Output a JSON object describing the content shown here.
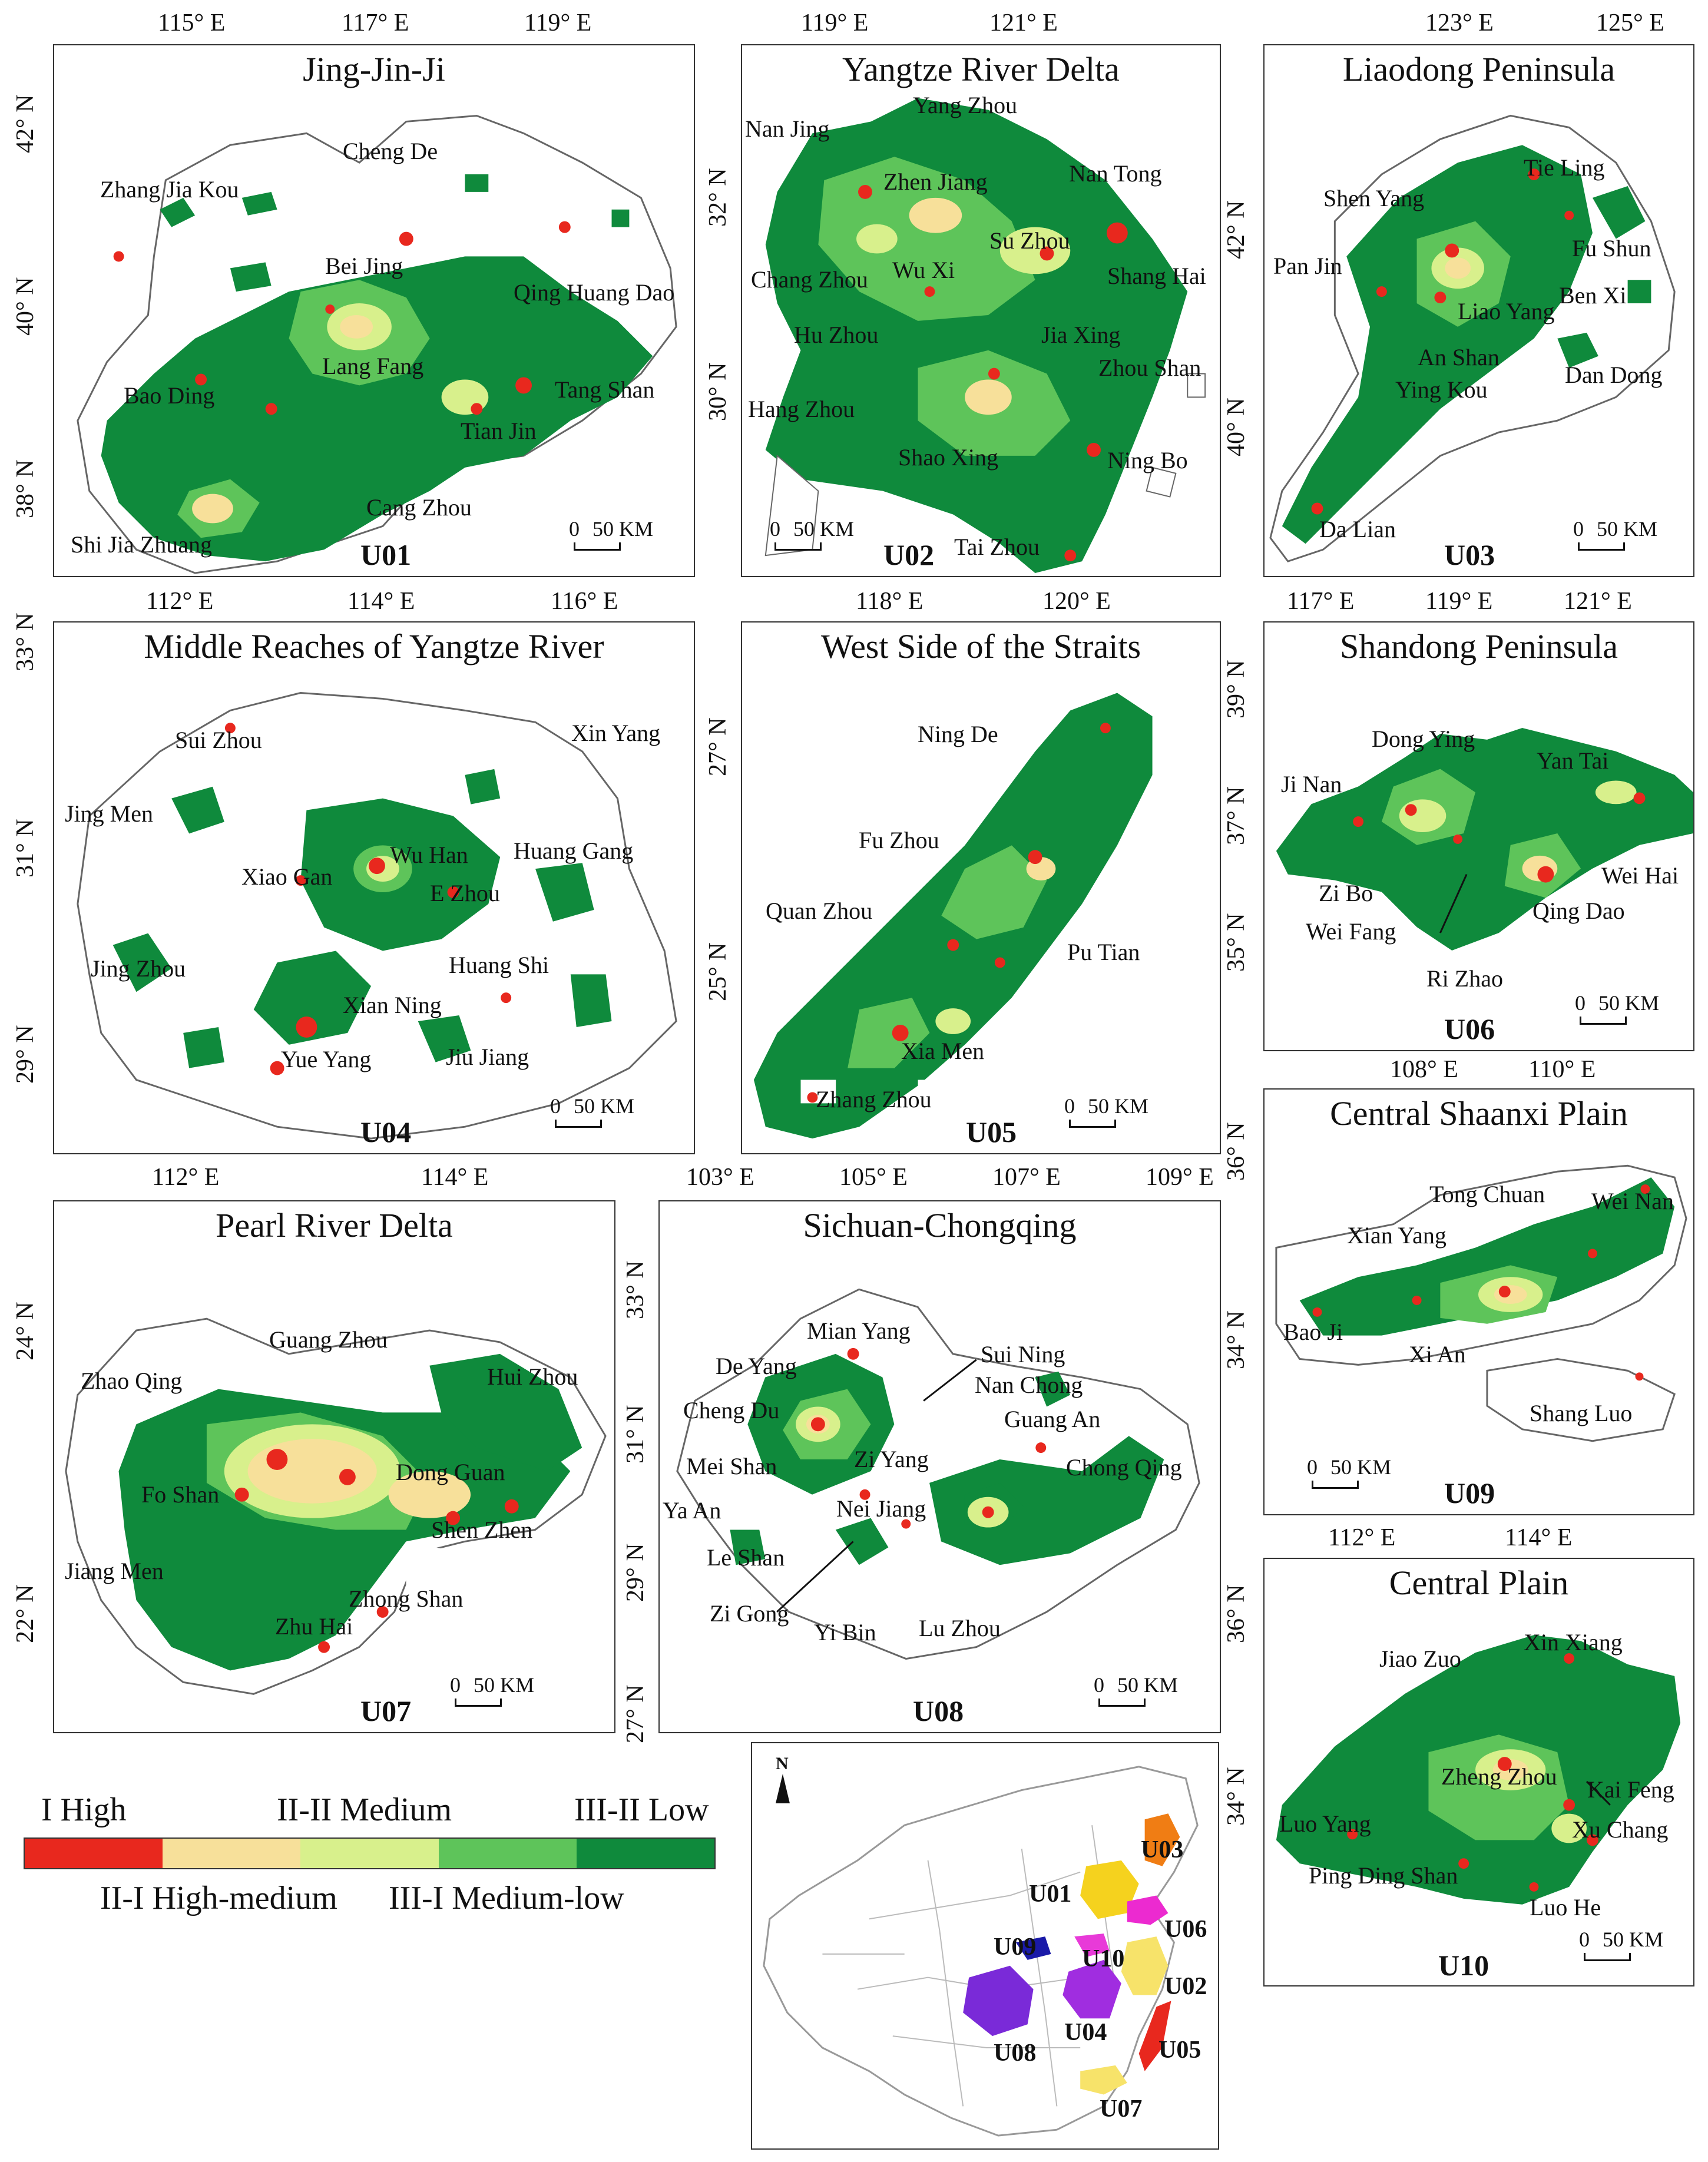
{
  "colors": {
    "high": "#e8281e",
    "high_medium": "#f7e09a",
    "medium": "#d8f08c",
    "medium_low": "#5ec45a",
    "low": "#0f8a3c"
  },
  "panels": {
    "u01": {
      "title": "Jing-Jin-Ji",
      "code": "U01",
      "x_ticks": [
        "115° E",
        "117° E",
        "119° E"
      ],
      "y_ticks": [
        "42° N",
        "40° N",
        "38° N"
      ],
      "cities": [
        "Cheng De",
        "Zhang Jia Kou",
        "Bei Jing",
        "Qing Huang Dao",
        "Lang Fang",
        "Bao Ding",
        "Tang Shan",
        "Tian Jin",
        "Cang Zhou",
        "Shi Jia Zhuang"
      ],
      "scale": {
        "zero": "0",
        "dist": "50 KM"
      }
    },
    "u02": {
      "title": "Yangtze River Delta",
      "code": "U02",
      "x_ticks": [
        "119° E",
        "121° E"
      ],
      "y_ticks": [
        "32° N",
        "30° N"
      ],
      "cities": [
        "Yang Zhou",
        "Nan Jing",
        "Zhen Jiang",
        "Nan Tong",
        "Su Zhou",
        "Chang Zhou",
        "Wu Xi",
        "Shang Hai",
        "Hu Zhou",
        "Jia Xing",
        "Zhou Shan",
        "Hang Zhou",
        "Shao Xing",
        "Ning Bo",
        "Tai Zhou"
      ],
      "scale": {
        "zero": "0",
        "dist": "50 KM"
      }
    },
    "u03": {
      "title": "Liaodong Peninsula",
      "code": "U03",
      "x_ticks": [
        "123° E",
        "125° E"
      ],
      "y_ticks": [
        "42° N",
        "40° N"
      ],
      "cities": [
        "Tie Ling",
        "Shen Yang",
        "Fu Shun",
        "Pan Jin",
        "Ben Xi",
        "Liao Yang",
        "An Shan",
        "Ying Kou",
        "Dan Dong",
        "Da Lian"
      ],
      "scale": {
        "zero": "0",
        "dist": "50 KM"
      }
    },
    "u04": {
      "title": "Middle Reaches of Yangtze River",
      "code": "U04",
      "x_ticks": [
        "112° E",
        "114° E",
        "116° E"
      ],
      "y_ticks": [
        "33° N",
        "31° N",
        "29° N"
      ],
      "cities": [
        "Sui Zhou",
        "Xin Yang",
        "Jing Men",
        "Wu Han",
        "Huang Gang",
        "Xiao Gan",
        "E Zhou",
        "Jing Zhou",
        "Huang Shi",
        "Xian Ning",
        "Yue Yang",
        "Jiu Jiang"
      ],
      "scale": {
        "zero": "0",
        "dist": "50 KM"
      }
    },
    "u05": {
      "title": "West Side of the Straits",
      "code": "U05",
      "x_ticks": [
        "118° E",
        "120° E"
      ],
      "y_ticks": [
        "27° N",
        "25° N"
      ],
      "cities": [
        "Ning De",
        "Fu Zhou",
        "Quan Zhou",
        "Pu Tian",
        "Xia Men",
        "Zhang Zhou"
      ],
      "scale": {
        "zero": "0",
        "dist": "50 KM"
      }
    },
    "u06": {
      "title": "Shandong Peninsula",
      "code": "U06",
      "x_ticks": [
        "117° E",
        "119° E",
        "121° E"
      ],
      "y_ticks": [
        "39° N",
        "37° N",
        "35° N"
      ],
      "cities": [
        "Dong Ying",
        "Yan Tai",
        "Ji Nan",
        "Wei Hai",
        "Zi Bo",
        "Qing Dao",
        "Wei Fang",
        "Ri Zhao"
      ],
      "scale": {
        "zero": "0",
        "dist": "50 KM"
      }
    },
    "u07": {
      "title": "Pearl River Delta",
      "code": "U07",
      "x_ticks": [
        "112° E",
        "114° E"
      ],
      "y_ticks": [
        "24° N",
        "22° N"
      ],
      "cities": [
        "Guang Zhou",
        "Zhao Qing",
        "Hui Zhou",
        "Dong Guan",
        "Fo Shan",
        "Shen Zhen",
        "Jiang Men",
        "Zhong Shan",
        "Zhu Hai"
      ],
      "scale": {
        "zero": "0",
        "dist": "50 KM"
      }
    },
    "u08": {
      "title": "Sichuan-Chongqing",
      "code": "U08",
      "x_ticks": [
        "103° E",
        "105° E",
        "107° E",
        "109° E"
      ],
      "y_ticks": [
        "33° N",
        "31° N",
        "29° N",
        "27° N"
      ],
      "cities": [
        "Mian Yang",
        "Sui Ning",
        "De Yang",
        "Nan Chong",
        "Cheng Du",
        "Guang An",
        "Zi Yang",
        "Mei Shan",
        "Chong Qing",
        "Ya An",
        "Nei Jiang",
        "Le Shan",
        "Zi Gong",
        "Yi Bin",
        "Lu Zhou"
      ],
      "scale": {
        "zero": "0",
        "dist": "50 KM"
      }
    },
    "u09": {
      "title": "Central Shaanxi Plain",
      "code": "U09",
      "x_ticks": [
        "108° E",
        "110° E"
      ],
      "y_ticks": [
        "36° N",
        "34° N"
      ],
      "cities": [
        "Tong Chuan",
        "Wei Nan",
        "Xian Yang",
        "Bao Ji",
        "Xi An",
        "Shang Luo"
      ],
      "scale": {
        "zero": "0",
        "dist": "50 KM"
      }
    },
    "u10": {
      "title": "Central Plain",
      "code": "U10",
      "x_ticks": [
        "112° E",
        "114° E"
      ],
      "y_ticks": [
        "36° N",
        "34° N"
      ],
      "cities": [
        "Xin Xiang",
        "Jiao Zuo",
        "Zheng Zhou",
        "Kai Feng",
        "Luo Yang",
        "Xu Chang",
        "Ping Ding Shan",
        "Luo He"
      ],
      "scale": {
        "zero": "0",
        "dist": "50 KM"
      }
    }
  },
  "legend": {
    "high": "I High",
    "high_medium": "II-I High-medium",
    "medium": "II-II Medium",
    "medium_low": "III-I Medium-low",
    "low": "III-II Low"
  },
  "inset": {
    "north": "N",
    "labels": [
      "U03",
      "U01",
      "U06",
      "U09",
      "U10",
      "U02",
      "U04",
      "U08",
      "U05",
      "U07"
    ],
    "colors": {
      "U01": "#f5d21e",
      "U02": "#f7e36a",
      "U03": "#f07d14",
      "U04": "#a02de0",
      "U05": "#e8281e",
      "U06": "#ec2ad0",
      "U07": "#f7e36a",
      "U08": "#7a2ad8",
      "U09": "#1a1aa8",
      "U10": "#e83ad8"
    }
  }
}
